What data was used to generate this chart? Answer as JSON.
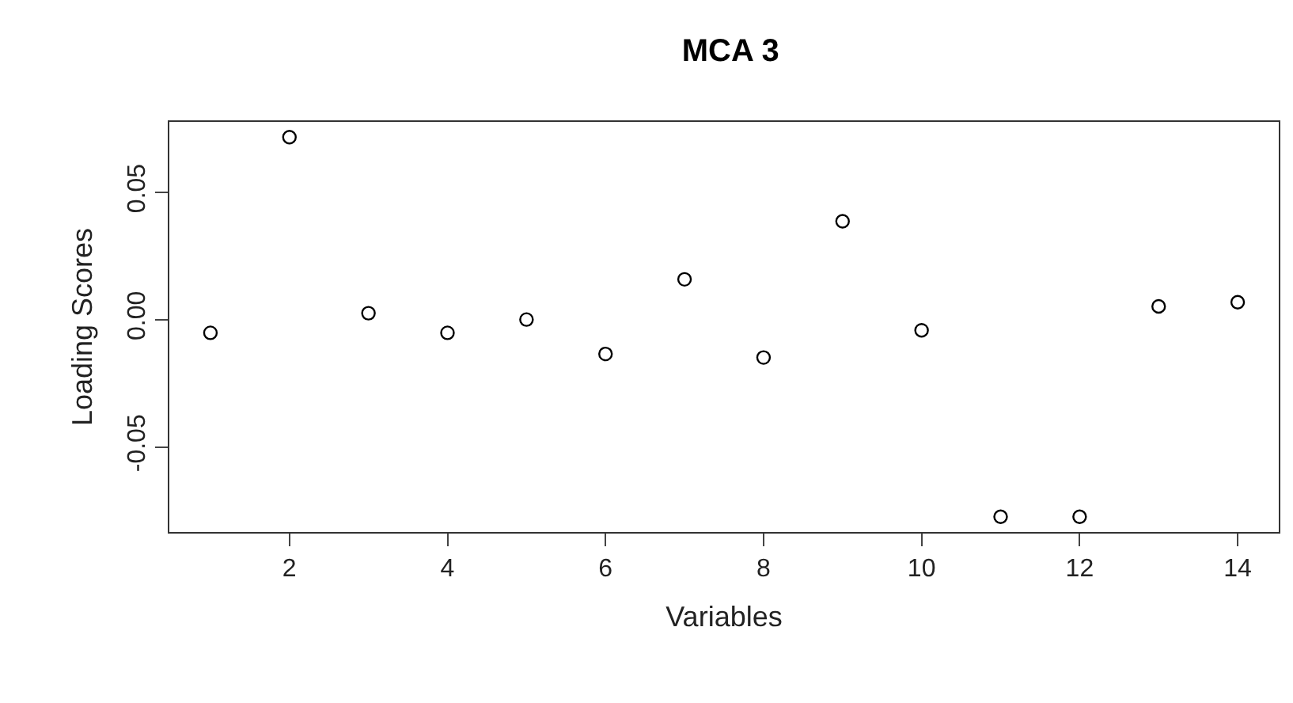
{
  "chart_data": {
    "type": "scatter",
    "title": "MCA 3",
    "xlabel": "Variables",
    "ylabel": "Loading Scores",
    "x": [
      1,
      2,
      3,
      4,
      5,
      6,
      7,
      8,
      9,
      10,
      11,
      12,
      13,
      14
    ],
    "values": [
      -0.0052,
      0.0716,
      0.0025,
      -0.0052,
      0.0,
      -0.0135,
      0.0158,
      -0.0149,
      0.0386,
      -0.0042,
      -0.0774,
      -0.0774,
      0.0052,
      0.0068
    ],
    "color": "#000000",
    "marker": "circle",
    "xlim": [
      0.48,
      14.52
    ],
    "xticks": [
      2,
      4,
      6,
      8,
      10,
      12,
      14
    ],
    "ylim": [
      -0.0834,
      0.0776
    ],
    "yticks": [
      {
        "value": -0.05,
        "label": "-0.05"
      },
      {
        "value": 0,
        "label": "0.00"
      },
      {
        "value": 0.05,
        "label": "0.05"
      }
    ],
    "legend": false
  }
}
